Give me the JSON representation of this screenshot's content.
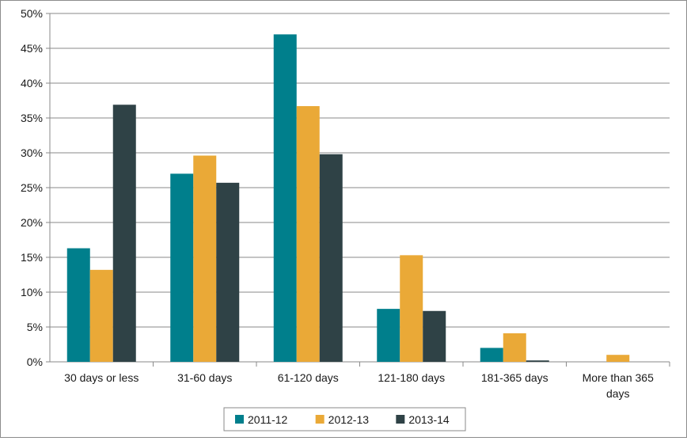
{
  "chart_data": {
    "type": "bar",
    "title": "",
    "xlabel": "",
    "ylabel": "",
    "ylim": [
      0,
      50
    ],
    "yticks": [
      "0%",
      "5%",
      "10%",
      "15%",
      "20%",
      "25%",
      "30%",
      "35%",
      "40%",
      "45%",
      "50%"
    ],
    "categories": [
      "30 days or less",
      "31-60 days",
      "61-120 days",
      "121-180 days",
      "181-365 days",
      "More than 365 days"
    ],
    "series": [
      {
        "name": "2011-12",
        "color": "#007f8c",
        "values": [
          16.3,
          27.0,
          47.0,
          7.6,
          2.0,
          0.0
        ]
      },
      {
        "name": "2012-13",
        "color": "#eaa937",
        "values": [
          13.2,
          29.6,
          36.7,
          15.3,
          4.1,
          1.0
        ]
      },
      {
        "name": "2013-14",
        "color": "#2f4246",
        "values": [
          36.9,
          25.7,
          29.8,
          7.3,
          0.2,
          0.0
        ]
      }
    ],
    "grid": true,
    "legend_position": "bottom"
  }
}
